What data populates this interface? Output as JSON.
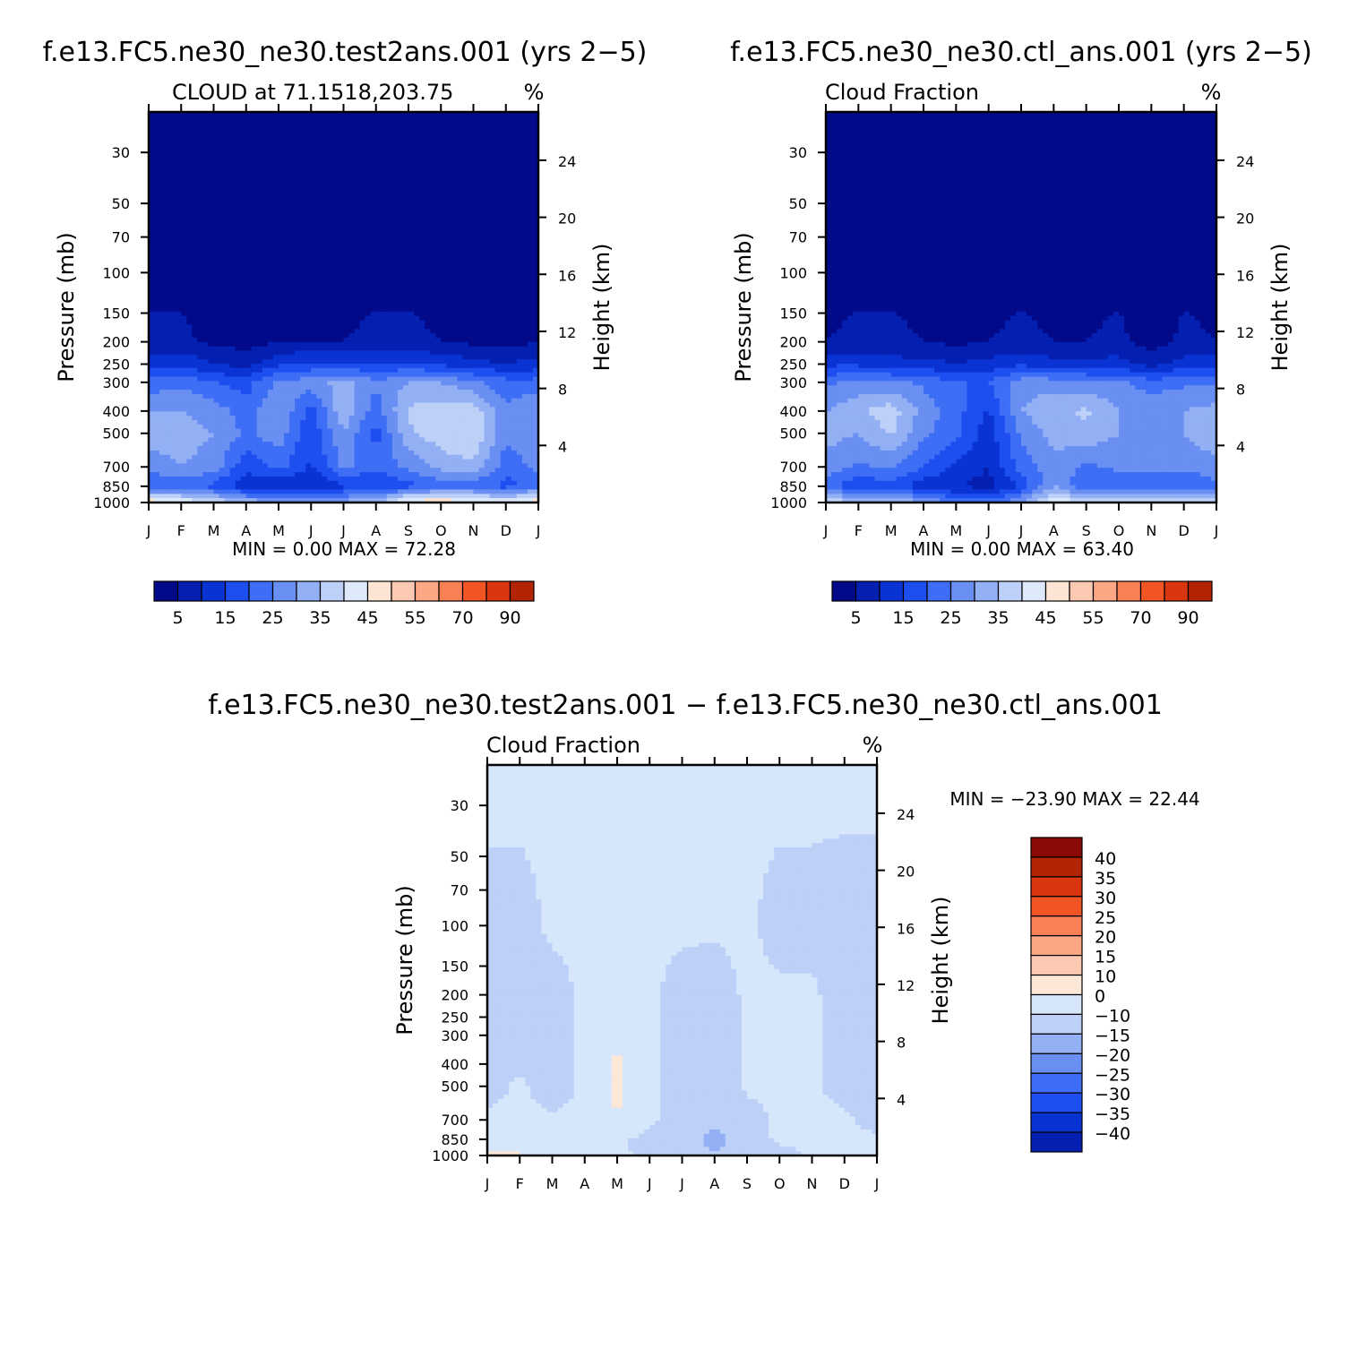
{
  "chart_data": [
    {
      "type": "heatmap",
      "title": "f.e13.FC5.ne30_ne30.test2ans.001 (yrs 2−5)",
      "subtitle": "CLOUD at 71.1518,203.75",
      "units": "%",
      "xlabel": "",
      "ylabel": "Pressure (mb)",
      "ylabel_right": "Height (km)",
      "x_ticks": [
        "J",
        "F",
        "M",
        "A",
        "M",
        "J",
        "J",
        "A",
        "S",
        "O",
        "N",
        "D",
        "J"
      ],
      "y_ticks": [
        "30",
        "50",
        "70",
        "100",
        "150",
        "200",
        "250",
        "300",
        "400",
        "500",
        "700",
        "850",
        "1000"
      ],
      "y_right_ticks": [
        "24",
        "20",
        "16",
        "12",
        "8",
        "4"
      ],
      "ylim": [
        1000,
        20
      ],
      "y_scale": "log",
      "stats": "MIN =     0.00 MAX =    72.28",
      "min": 0.0,
      "max": 72.28,
      "levels": [
        5,
        10,
        15,
        20,
        25,
        30,
        35,
        40,
        45,
        50,
        55,
        60,
        70,
        80,
        90
      ],
      "colorbar_labels": [
        "5",
        "15",
        "25",
        "35",
        "45",
        "55",
        "70",
        "90"
      ],
      "colors": [
        "#020a8a",
        "#0520b0",
        "#0a33d4",
        "#1d4ff0",
        "#3d6ef5",
        "#6a8ff2",
        "#93b0f5",
        "#bcd0f8",
        "#dde9fb",
        "#fde5d5",
        "#fccab2",
        "#fba684",
        "#f97f55",
        "#f25524",
        "#d8360e",
        "#b32405",
        "#8a0b05"
      ],
      "series": [
        {
          "pressure": 30,
          "values": [
            0,
            0,
            0,
            0,
            0,
            0,
            0,
            0,
            0,
            0,
            0,
            0,
            0
          ]
        },
        {
          "pressure": 200,
          "values": [
            6,
            6,
            4,
            3,
            5,
            5,
            5,
            6,
            6,
            5,
            4,
            3,
            5
          ]
        },
        {
          "pressure": 250,
          "values": [
            12,
            14,
            10,
            8,
            14,
            16,
            16,
            15,
            16,
            14,
            12,
            10,
            12
          ]
        },
        {
          "pressure": 300,
          "values": [
            22,
            24,
            20,
            18,
            26,
            28,
            32,
            26,
            30,
            30,
            26,
            22,
            22
          ]
        },
        {
          "pressure": 400,
          "values": [
            30,
            30,
            28,
            22,
            30,
            18,
            34,
            22,
            36,
            38,
            38,
            26,
            30
          ]
        },
        {
          "pressure": 500,
          "values": [
            34,
            32,
            30,
            24,
            28,
            16,
            30,
            18,
            34,
            38,
            40,
            26,
            30
          ]
        },
        {
          "pressure": 700,
          "values": [
            26,
            30,
            28,
            16,
            22,
            14,
            26,
            22,
            26,
            32,
            34,
            22,
            26
          ]
        },
        {
          "pressure": 850,
          "values": [
            20,
            22,
            18,
            12,
            10,
            10,
            14,
            14,
            18,
            22,
            22,
            18,
            22
          ]
        },
        {
          "pressure": 1000,
          "values": [
            50,
            44,
            40,
            34,
            30,
            30,
            32,
            34,
            48,
            50,
            46,
            44,
            50
          ]
        }
      ]
    },
    {
      "type": "heatmap",
      "title": "f.e13.FC5.ne30_ne30.ctl_ans.001 (yrs 2−5)",
      "subtitle": "Cloud Fraction",
      "units": "%",
      "xlabel": "",
      "ylabel": "Pressure (mb)",
      "ylabel_right": "Height (km)",
      "x_ticks": [
        "J",
        "F",
        "M",
        "A",
        "M",
        "J",
        "J",
        "A",
        "S",
        "O",
        "N",
        "D",
        "J"
      ],
      "y_ticks": [
        "30",
        "50",
        "70",
        "100",
        "150",
        "200",
        "250",
        "300",
        "400",
        "500",
        "700",
        "850",
        "1000"
      ],
      "y_right_ticks": [
        "24",
        "20",
        "16",
        "12",
        "8",
        "4"
      ],
      "ylim": [
        1000,
        20
      ],
      "y_scale": "log",
      "stats": "MIN =     0.00 MAX =    63.40",
      "min": 0.0,
      "max": 63.4,
      "levels": [
        5,
        10,
        15,
        20,
        25,
        30,
        35,
        40,
        45,
        50,
        55,
        60,
        70,
        80,
        90
      ],
      "colorbar_labels": [
        "5",
        "15",
        "25",
        "35",
        "45",
        "55",
        "70",
        "90"
      ],
      "colors": [
        "#020a8a",
        "#0520b0",
        "#0a33d4",
        "#1d4ff0",
        "#3d6ef5",
        "#6a8ff2",
        "#93b0f5",
        "#bcd0f8",
        "#dde9fb",
        "#fde5d5",
        "#fccab2",
        "#fba684",
        "#f97f55",
        "#f25524",
        "#d8360e",
        "#b32405",
        "#8a0b05"
      ],
      "series": [
        {
          "pressure": 30,
          "values": [
            0,
            0,
            0,
            0,
            0,
            0,
            0,
            0,
            0,
            0,
            0,
            0,
            0
          ]
        },
        {
          "pressure": 200,
          "values": [
            5,
            6,
            6,
            5,
            4,
            5,
            6,
            5,
            5,
            6,
            3,
            6,
            5
          ]
        },
        {
          "pressure": 250,
          "values": [
            14,
            14,
            12,
            12,
            10,
            12,
            14,
            12,
            12,
            12,
            8,
            12,
            14
          ]
        },
        {
          "pressure": 300,
          "values": [
            24,
            26,
            26,
            24,
            20,
            20,
            28,
            28,
            26,
            26,
            22,
            24,
            24
          ]
        },
        {
          "pressure": 400,
          "values": [
            30,
            34,
            38,
            28,
            22,
            14,
            30,
            34,
            36,
            30,
            30,
            30,
            32
          ]
        },
        {
          "pressure": 500,
          "values": [
            32,
            30,
            36,
            26,
            22,
            12,
            26,
            32,
            34,
            30,
            28,
            30,
            34
          ]
        },
        {
          "pressure": 700,
          "values": [
            28,
            24,
            26,
            20,
            14,
            10,
            22,
            28,
            24,
            26,
            26,
            26,
            28
          ]
        },
        {
          "pressure": 850,
          "values": [
            22,
            16,
            18,
            12,
            10,
            8,
            16,
            30,
            20,
            22,
            22,
            20,
            24
          ]
        },
        {
          "pressure": 1000,
          "values": [
            40,
            34,
            36,
            30,
            24,
            22,
            30,
            44,
            40,
            42,
            40,
            38,
            40
          ]
        }
      ]
    },
    {
      "type": "heatmap",
      "title": "f.e13.FC5.ne30_ne30.test2ans.001 − f.e13.FC5.ne30_ne30.ctl_ans.001",
      "subtitle": "Cloud Fraction",
      "units": "%",
      "xlabel": "",
      "ylabel": "Pressure (mb)",
      "ylabel_right": "Height (km)",
      "x_ticks": [
        "J",
        "F",
        "M",
        "A",
        "M",
        "J",
        "J",
        "A",
        "S",
        "O",
        "N",
        "D",
        "J"
      ],
      "y_ticks": [
        "30",
        "50",
        "70",
        "100",
        "150",
        "200",
        "250",
        "300",
        "400",
        "500",
        "700",
        "850",
        "1000"
      ],
      "y_right_ticks": [
        "24",
        "20",
        "16",
        "12",
        "8",
        "4"
      ],
      "ylim": [
        1000,
        20
      ],
      "y_scale": "log",
      "stats": "MIN = −23.90 MAX =   22.44",
      "min": -23.9,
      "max": 22.44,
      "levels": [
        -40,
        -35,
        -30,
        -25,
        -20,
        -15,
        -10,
        0,
        10,
        15,
        20,
        25,
        30,
        35,
        40
      ],
      "colorbar_labels": [
        "40",
        "35",
        "30",
        "25",
        "20",
        "15",
        "10",
        "0",
        "−10",
        "−15",
        "−20",
        "−25",
        "−30",
        "−35",
        "−40"
      ],
      "colors": [
        "#020a8a",
        "#0520b0",
        "#0a33d4",
        "#1d4ff0",
        "#3d6ef5",
        "#6a8ff2",
        "#93b0f5",
        "#bcd0f8",
        "#d6e6fb",
        "#fde8d8",
        "#fccab2",
        "#fba684",
        "#f97f55",
        "#f25524",
        "#d8360e",
        "#b32405",
        "#8a0b05"
      ],
      "series": [
        {
          "pressure": 30,
          "values": [
            1,
            1,
            1,
            1,
            1,
            1,
            1,
            1,
            1,
            1,
            1,
            1,
            1
          ]
        },
        {
          "pressure": 100,
          "values": [
            -2,
            -2,
            1,
            1,
            1,
            1,
            1,
            1,
            1,
            -2,
            -2,
            -3,
            -3
          ]
        },
        {
          "pressure": 200,
          "values": [
            -3,
            -3,
            -2,
            1,
            1,
            1,
            -2,
            -3,
            1,
            1,
            1,
            -3,
            -3
          ]
        },
        {
          "pressure": 300,
          "values": [
            -3,
            -3,
            -2,
            1,
            10,
            1,
            -2,
            -4,
            1,
            1,
            1,
            -3,
            -3
          ]
        },
        {
          "pressure": 500,
          "values": [
            -2,
            1,
            -3,
            1,
            12,
            1,
            -2,
            -8,
            1,
            1,
            1,
            -2,
            -2
          ]
        },
        {
          "pressure": 700,
          "values": [
            1,
            1,
            1,
            1,
            10,
            1,
            -2,
            -8,
            -2,
            1,
            1,
            1,
            -2
          ]
        },
        {
          "pressure": 850,
          "values": [
            2,
            1,
            1,
            1,
            1,
            -2,
            -3,
            -14,
            -3,
            1,
            1,
            1,
            1
          ]
        },
        {
          "pressure": 1000,
          "values": [
            14,
            12,
            4,
            2,
            1,
            -1,
            -2,
            -10,
            -3,
            -2,
            1,
            1,
            3
          ]
        }
      ]
    }
  ]
}
